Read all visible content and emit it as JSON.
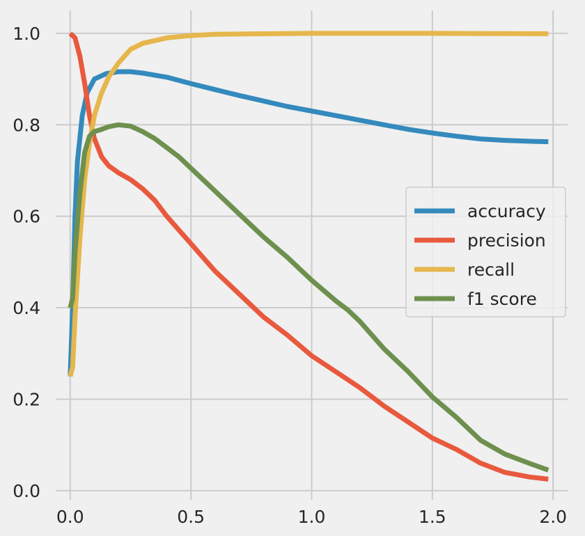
{
  "chart_data": {
    "type": "line",
    "title": "",
    "xlabel": "",
    "ylabel": "",
    "xlim": [
      -0.06,
      2.06
    ],
    "ylim": [
      -0.02,
      1.05
    ],
    "xticks": [
      "0.0",
      "0.5",
      "1.0",
      "1.5",
      "2.0"
    ],
    "xtick_values": [
      0.0,
      0.5,
      1.0,
      1.5,
      2.0
    ],
    "yticks": [
      "0.0",
      "0.2",
      "0.4",
      "0.6",
      "0.8",
      "1.0"
    ],
    "ytick_values": [
      0.0,
      0.2,
      0.4,
      0.6,
      0.8,
      1.0
    ],
    "grid": true,
    "legend_position": "center-right",
    "series": [
      {
        "name": "accuracy",
        "color": "#348abd",
        "points": [
          [
            0.0,
            0.25
          ],
          [
            0.01,
            0.4
          ],
          [
            0.02,
            0.6
          ],
          [
            0.03,
            0.72
          ],
          [
            0.05,
            0.82
          ],
          [
            0.07,
            0.87
          ],
          [
            0.1,
            0.9
          ],
          [
            0.15,
            0.912
          ],
          [
            0.2,
            0.916
          ],
          [
            0.25,
            0.916
          ],
          [
            0.3,
            0.913
          ],
          [
            0.4,
            0.904
          ],
          [
            0.5,
            0.89
          ],
          [
            0.6,
            0.877
          ],
          [
            0.7,
            0.864
          ],
          [
            0.8,
            0.852
          ],
          [
            0.9,
            0.84
          ],
          [
            1.0,
            0.83
          ],
          [
            1.1,
            0.82
          ],
          [
            1.2,
            0.81
          ],
          [
            1.3,
            0.8
          ],
          [
            1.4,
            0.79
          ],
          [
            1.5,
            0.782
          ],
          [
            1.6,
            0.775
          ],
          [
            1.7,
            0.769
          ],
          [
            1.8,
            0.766
          ],
          [
            1.9,
            0.764
          ],
          [
            1.98,
            0.763
          ]
        ]
      },
      {
        "name": "precision",
        "color": "#e8593e",
        "points": [
          [
            0.0,
            1.0
          ],
          [
            0.02,
            0.99
          ],
          [
            0.04,
            0.95
          ],
          [
            0.06,
            0.89
          ],
          [
            0.08,
            0.82
          ],
          [
            0.1,
            0.77
          ],
          [
            0.13,
            0.73
          ],
          [
            0.16,
            0.71
          ],
          [
            0.2,
            0.695
          ],
          [
            0.25,
            0.68
          ],
          [
            0.3,
            0.66
          ],
          [
            0.35,
            0.635
          ],
          [
            0.4,
            0.6
          ],
          [
            0.45,
            0.57
          ],
          [
            0.5,
            0.54
          ],
          [
            0.55,
            0.51
          ],
          [
            0.6,
            0.48
          ],
          [
            0.7,
            0.43
          ],
          [
            0.8,
            0.38
          ],
          [
            0.9,
            0.34
          ],
          [
            1.0,
            0.295
          ],
          [
            1.1,
            0.26
          ],
          [
            1.2,
            0.225
          ],
          [
            1.3,
            0.185
          ],
          [
            1.4,
            0.15
          ],
          [
            1.5,
            0.115
          ],
          [
            1.6,
            0.09
          ],
          [
            1.7,
            0.06
          ],
          [
            1.8,
            0.04
          ],
          [
            1.9,
            0.03
          ],
          [
            1.98,
            0.025
          ]
        ]
      },
      {
        "name": "recall",
        "color": "#e5b74c",
        "points": [
          [
            0.0,
            0.25
          ],
          [
            0.01,
            0.27
          ],
          [
            0.02,
            0.38
          ],
          [
            0.04,
            0.55
          ],
          [
            0.06,
            0.68
          ],
          [
            0.08,
            0.76
          ],
          [
            0.1,
            0.82
          ],
          [
            0.13,
            0.87
          ],
          [
            0.16,
            0.905
          ],
          [
            0.2,
            0.935
          ],
          [
            0.25,
            0.965
          ],
          [
            0.3,
            0.978
          ],
          [
            0.4,
            0.99
          ],
          [
            0.5,
            0.995
          ],
          [
            0.6,
            0.998
          ],
          [
            0.8,
            0.999
          ],
          [
            1.0,
            1.0
          ],
          [
            1.5,
            1.0
          ],
          [
            1.98,
            0.999
          ]
        ]
      },
      {
        "name": "f1 score",
        "color": "#6d904f",
        "points": [
          [
            0.0,
            0.4
          ],
          [
            0.01,
            0.42
          ],
          [
            0.02,
            0.52
          ],
          [
            0.04,
            0.65
          ],
          [
            0.06,
            0.74
          ],
          [
            0.08,
            0.775
          ],
          [
            0.1,
            0.785
          ],
          [
            0.13,
            0.79
          ],
          [
            0.16,
            0.796
          ],
          [
            0.2,
            0.8
          ],
          [
            0.25,
            0.797
          ],
          [
            0.3,
            0.785
          ],
          [
            0.35,
            0.77
          ],
          [
            0.4,
            0.75
          ],
          [
            0.45,
            0.73
          ],
          [
            0.5,
            0.705
          ],
          [
            0.55,
            0.68
          ],
          [
            0.6,
            0.655
          ],
          [
            0.7,
            0.605
          ],
          [
            0.8,
            0.555
          ],
          [
            0.9,
            0.51
          ],
          [
            1.0,
            0.46
          ],
          [
            1.1,
            0.415
          ],
          [
            1.15,
            0.395
          ],
          [
            1.2,
            0.37
          ],
          [
            1.3,
            0.31
          ],
          [
            1.4,
            0.26
          ],
          [
            1.5,
            0.205
          ],
          [
            1.6,
            0.16
          ],
          [
            1.7,
            0.11
          ],
          [
            1.8,
            0.08
          ],
          [
            1.9,
            0.06
          ],
          [
            1.98,
            0.045
          ]
        ]
      }
    ]
  }
}
